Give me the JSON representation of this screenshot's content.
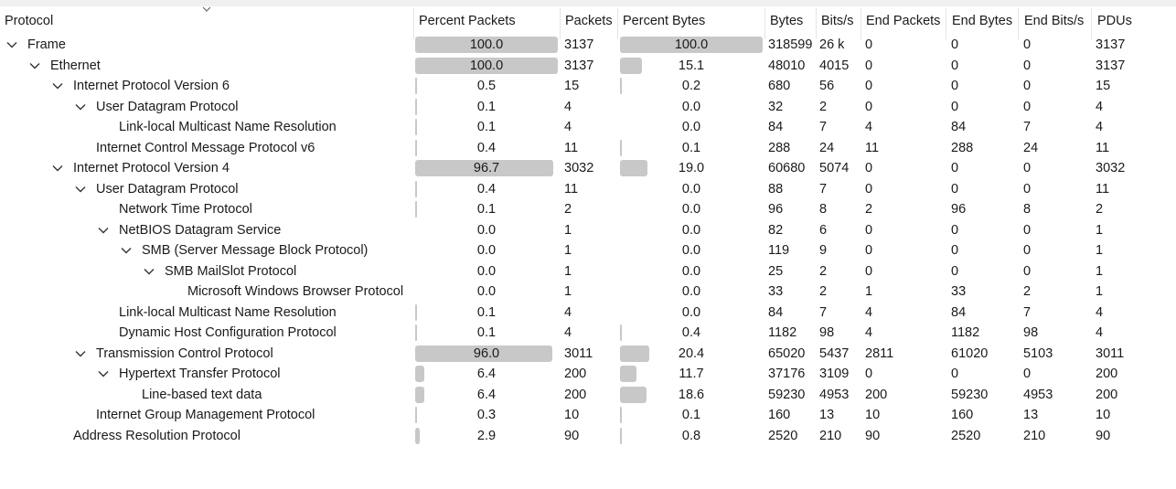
{
  "columns": {
    "protocol": "Protocol",
    "percent_packets": "Percent Packets",
    "packets": "Packets",
    "percent_bytes": "Percent Bytes",
    "bytes": "Bytes",
    "bits_s": "Bits/s",
    "end_packets": "End Packets",
    "end_bytes": "End Bytes",
    "end_bits_s": "End Bits/s",
    "pdus": "PDUs"
  },
  "rows": [
    {
      "name": "Frame",
      "depth": 0,
      "expandable": true,
      "pct_packets": "100.0",
      "packets": "3137",
      "pct_bytes": "100.0",
      "bytes": "318599",
      "bits_s": "26 k",
      "end_packets": "0",
      "end_bytes": "0",
      "end_bits_s": "0",
      "pdus": "3137"
    },
    {
      "name": "Ethernet",
      "depth": 1,
      "expandable": true,
      "pct_packets": "100.0",
      "packets": "3137",
      "pct_bytes": "15.1",
      "bytes": "48010",
      "bits_s": "4015",
      "end_packets": "0",
      "end_bytes": "0",
      "end_bits_s": "0",
      "pdus": "3137"
    },
    {
      "name": "Internet Protocol Version 6",
      "depth": 2,
      "expandable": true,
      "pct_packets": "0.5",
      "packets": "15",
      "pct_bytes": "0.2",
      "bytes": "680",
      "bits_s": "56",
      "end_packets": "0",
      "end_bytes": "0",
      "end_bits_s": "0",
      "pdus": "15"
    },
    {
      "name": "User Datagram Protocol",
      "depth": 3,
      "expandable": true,
      "pct_packets": "0.1",
      "packets": "4",
      "pct_bytes": "0.0",
      "bytes": "32",
      "bits_s": "2",
      "end_packets": "0",
      "end_bytes": "0",
      "end_bits_s": "0",
      "pdus": "4"
    },
    {
      "name": "Link-local Multicast Name Resolution",
      "depth": 4,
      "expandable": false,
      "pct_packets": "0.1",
      "packets": "4",
      "pct_bytes": "0.0",
      "bytes": "84",
      "bits_s": "7",
      "end_packets": "4",
      "end_bytes": "84",
      "end_bits_s": "7",
      "pdus": "4"
    },
    {
      "name": "Internet Control Message Protocol v6",
      "depth": 3,
      "expandable": false,
      "pct_packets": "0.4",
      "packets": "11",
      "pct_bytes": "0.1",
      "bytes": "288",
      "bits_s": "24",
      "end_packets": "11",
      "end_bytes": "288",
      "end_bits_s": "24",
      "pdus": "11"
    },
    {
      "name": "Internet Protocol Version 4",
      "depth": 2,
      "expandable": true,
      "pct_packets": "96.7",
      "packets": "3032",
      "pct_bytes": "19.0",
      "bytes": "60680",
      "bits_s": "5074",
      "end_packets": "0",
      "end_bytes": "0",
      "end_bits_s": "0",
      "pdus": "3032"
    },
    {
      "name": "User Datagram Protocol",
      "depth": 3,
      "expandable": true,
      "pct_packets": "0.4",
      "packets": "11",
      "pct_bytes": "0.0",
      "bytes": "88",
      "bits_s": "7",
      "end_packets": "0",
      "end_bytes": "0",
      "end_bits_s": "0",
      "pdus": "11"
    },
    {
      "name": "Network Time Protocol",
      "depth": 4,
      "expandable": false,
      "pct_packets": "0.1",
      "packets": "2",
      "pct_bytes": "0.0",
      "bytes": "96",
      "bits_s": "8",
      "end_packets": "2",
      "end_bytes": "96",
      "end_bits_s": "8",
      "pdus": "2"
    },
    {
      "name": "NetBIOS Datagram Service",
      "depth": 4,
      "expandable": true,
      "pct_packets": "0.0",
      "packets": "1",
      "pct_bytes": "0.0",
      "bytes": "82",
      "bits_s": "6",
      "end_packets": "0",
      "end_bytes": "0",
      "end_bits_s": "0",
      "pdus": "1"
    },
    {
      "name": "SMB (Server Message Block Protocol)",
      "depth": 5,
      "expandable": true,
      "pct_packets": "0.0",
      "packets": "1",
      "pct_bytes": "0.0",
      "bytes": "119",
      "bits_s": "9",
      "end_packets": "0",
      "end_bytes": "0",
      "end_bits_s": "0",
      "pdus": "1"
    },
    {
      "name": "SMB MailSlot Protocol",
      "depth": 6,
      "expandable": true,
      "pct_packets": "0.0",
      "packets": "1",
      "pct_bytes": "0.0",
      "bytes": "25",
      "bits_s": "2",
      "end_packets": "0",
      "end_bytes": "0",
      "end_bits_s": "0",
      "pdus": "1"
    },
    {
      "name": "Microsoft Windows Browser Protocol",
      "depth": 7,
      "expandable": false,
      "pct_packets": "0.0",
      "packets": "1",
      "pct_bytes": "0.0",
      "bytes": "33",
      "bits_s": "2",
      "end_packets": "1",
      "end_bytes": "33",
      "end_bits_s": "2",
      "pdus": "1"
    },
    {
      "name": "Link-local Multicast Name Resolution",
      "depth": 4,
      "expandable": false,
      "pct_packets": "0.1",
      "packets": "4",
      "pct_bytes": "0.0",
      "bytes": "84",
      "bits_s": "7",
      "end_packets": "4",
      "end_bytes": "84",
      "end_bits_s": "7",
      "pdus": "4"
    },
    {
      "name": "Dynamic Host Configuration Protocol",
      "depth": 4,
      "expandable": false,
      "pct_packets": "0.1",
      "packets": "4",
      "pct_bytes": "0.4",
      "bytes": "1182",
      "bits_s": "98",
      "end_packets": "4",
      "end_bytes": "1182",
      "end_bits_s": "98",
      "pdus": "4"
    },
    {
      "name": "Transmission Control Protocol",
      "depth": 3,
      "expandable": true,
      "pct_packets": "96.0",
      "packets": "3011",
      "pct_bytes": "20.4",
      "bytes": "65020",
      "bits_s": "5437",
      "end_packets": "2811",
      "end_bytes": "61020",
      "end_bits_s": "5103",
      "pdus": "3011"
    },
    {
      "name": "Hypertext Transfer Protocol",
      "depth": 4,
      "expandable": true,
      "pct_packets": "6.4",
      "packets": "200",
      "pct_bytes": "11.7",
      "bytes": "37176",
      "bits_s": "3109",
      "end_packets": "0",
      "end_bytes": "0",
      "end_bits_s": "0",
      "pdus": "200"
    },
    {
      "name": "Line-based text data",
      "depth": 5,
      "expandable": false,
      "pct_packets": "6.4",
      "packets": "200",
      "pct_bytes": "18.6",
      "bytes": "59230",
      "bits_s": "4953",
      "end_packets": "200",
      "end_bytes": "59230",
      "end_bits_s": "4953",
      "pdus": "200"
    },
    {
      "name": "Internet Group Management Protocol",
      "depth": 3,
      "expandable": false,
      "pct_packets": "0.3",
      "packets": "10",
      "pct_bytes": "0.1",
      "bytes": "160",
      "bits_s": "13",
      "end_packets": "10",
      "end_bytes": "160",
      "end_bits_s": "13",
      "pdus": "10"
    },
    {
      "name": "Address Resolution Protocol",
      "depth": 2,
      "expandable": false,
      "pct_packets": "2.9",
      "packets": "90",
      "pct_bytes": "0.8",
      "bytes": "2520",
      "bits_s": "210",
      "end_packets": "90",
      "end_bytes": "2520",
      "end_bits_s": "210",
      "pdus": "90"
    }
  ],
  "colors": {
    "bar": "#c8c8c8",
    "text": "#1a1a1a",
    "header_sep": "#e5e5e5"
  },
  "icons": {
    "expanded": "chevron-down-icon",
    "sort": "sort-indicator-icon"
  }
}
